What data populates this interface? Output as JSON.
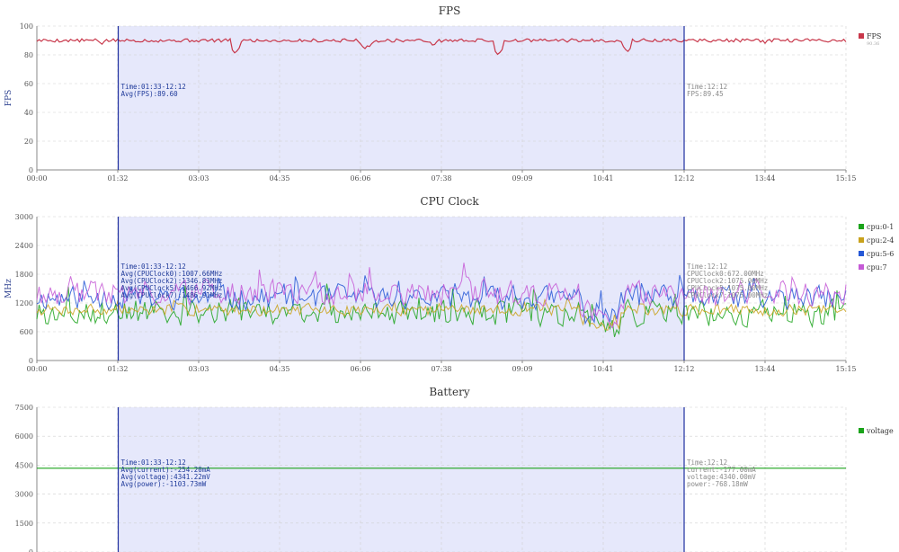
{
  "colors": {
    "band": "#e6e8fb",
    "marker": "#1f2f9f",
    "grid": "#d0d0d0",
    "axis": "#888888",
    "fps": "#c8374a",
    "cpu01": "#1aa31a",
    "cpu24": "#c9a21c",
    "cpu56": "#2457d6",
    "cpu7": "#c55ad6",
    "current": "#9c1f8a",
    "voltage": "#1aa31a",
    "power": "#c9a21c"
  },
  "chart_data": [
    {
      "type": "line",
      "title": "FPS",
      "ylabel": "FPS",
      "xlabel": "",
      "ylim": [
        0,
        100
      ],
      "yticks": [
        "0",
        "20",
        "40",
        "60",
        "80",
        "100"
      ],
      "x_ticks": [
        "00:00",
        "01:32",
        "03:03",
        "04:35",
        "06:06",
        "07:38",
        "09:09",
        "10:41",
        "12:12",
        "13:44",
        "15:15"
      ],
      "x_range_seconds": [
        0,
        915
      ],
      "grid": true,
      "selection": {
        "start": "01:32",
        "end": "12:12"
      },
      "series": [
        {
          "name": "FPS",
          "legend_sub": "90.36",
          "color_key": "fps",
          "baseline": 90,
          "noise": 1.2,
          "dips": [
            [
              0.245,
              81
            ],
            [
              0.405,
              84
            ],
            [
              0.41,
              85
            ],
            [
              0.49,
              86
            ],
            [
              0.57,
              80
            ],
            [
              0.73,
              82
            ],
            [
              0.08,
              87
            ],
            [
              0.9,
              88
            ]
          ]
        }
      ],
      "annotations": {
        "left": [
          "Time:01:33-12:12",
          "Avg(FPS):89.60"
        ],
        "right": [
          "Time:12:12",
          "FPS:89.45"
        ]
      }
    },
    {
      "type": "line",
      "title": "CPU Clock",
      "ylabel": "MHz",
      "xlabel": "",
      "ylim": [
        0,
        3000
      ],
      "yticks": [
        "0",
        "600",
        "1200",
        "1800",
        "2400",
        "3000"
      ],
      "x_ticks": [
        "00:00",
        "01:32",
        "03:03",
        "04:35",
        "06:06",
        "07:38",
        "09:09",
        "10:41",
        "12:12",
        "13:44",
        "15:15"
      ],
      "x_range_seconds": [
        0,
        915
      ],
      "grid": true,
      "selection": {
        "start": "01:32",
        "end": "12:12"
      },
      "series": [
        {
          "name": "cpu:0-1",
          "color_key": "cpu01",
          "base": 1000,
          "amp": 350,
          "seed": 3
        },
        {
          "name": "cpu:2-4",
          "color_key": "cpu24",
          "base": 1050,
          "amp": 150,
          "seed": 7
        },
        {
          "name": "cpu:5-6",
          "color_key": "cpu56",
          "base": 1300,
          "amp": 300,
          "seed": 11
        },
        {
          "name": "cpu:7",
          "color_key": "cpu7",
          "base": 1400,
          "amp": 350,
          "seed": 19
        }
      ],
      "annotations": {
        "left": [
          "Time:01:33-12:12",
          "Avg(CPUClock0):1007.66MHz",
          "Avg(CPUClock2):1346.83MHz",
          "Avg(CPUClock5):1466.92MHz",
          "Avg(CPUClock7):1486.91MHz"
        ],
        "right": [
          "Time:12:12",
          "CPUClock0:672.00MHz",
          "CPUClock2:1075.00MHz",
          "CPUClock5:1075.00MHz",
          "CPUClock7:1075.00MHz"
        ]
      }
    },
    {
      "type": "line",
      "title": "Battery",
      "ylabel": "",
      "xlabel": "",
      "ylim": [
        0,
        7500
      ],
      "yticks": [
        "0",
        "1500",
        "3000",
        "4500",
        "6000",
        "7500"
      ],
      "x_range_seconds": [
        0,
        915
      ],
      "grid": true,
      "selection": {
        "start": "01:32",
        "end": "12:12"
      },
      "series": [
        {
          "name": "current",
          "color_key": "current",
          "value": -254.2
        },
        {
          "name": "voltage",
          "color_key": "voltage",
          "value": 4341.22
        },
        {
          "name": "power",
          "color_key": "power",
          "value": -1103.73
        }
      ],
      "annotations": {
        "left": [
          "Time:01:33-12:12",
          "Avg(current):-254.20mA",
          "Avg(voltage):4341.22mV",
          "Avg(power):-1103.73mW"
        ],
        "right": [
          "Time:12:12",
          "current:-177.00mA",
          "voltage:4340.00mV",
          "power:-768.18mW"
        ]
      }
    }
  ]
}
